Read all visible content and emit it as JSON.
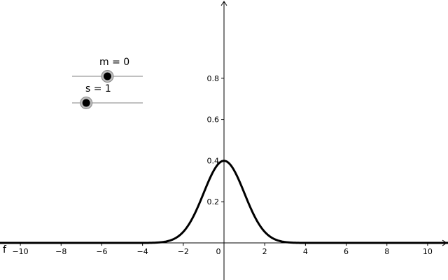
{
  "function_label": "f",
  "curve_color": "#000000",
  "sliders": [
    {
      "name": "m",
      "value": 0,
      "min": -5,
      "max": 5,
      "label": "m = 0"
    },
    {
      "name": "s",
      "value": 1,
      "min": 0,
      "max": 5,
      "label": "s = 1"
    }
  ],
  "chart_data": {
    "type": "line",
    "function": "normal probability density with mean m and standard deviation s",
    "xlim": [
      -11,
      11
    ],
    "ylim": [
      -0.18,
      1.18
    ],
    "x_ticks": [
      -10,
      -8,
      -6,
      -4,
      -2,
      0,
      2,
      4,
      6,
      8,
      10
    ],
    "x_tick_labels": [
      "−10",
      "−8",
      "−6",
      "−4",
      "−2",
      "0",
      "2",
      "4",
      "6",
      "8",
      "10"
    ],
    "y_ticks": [
      0.2,
      0.4,
      0.6,
      0.8
    ],
    "y_tick_labels": [
      "0.2",
      "0.4",
      "0.6",
      "0.8"
    ],
    "grid": false,
    "series": [
      {
        "name": "f",
        "mean": 0,
        "sd": 1,
        "peak": 0.4
      }
    ]
  }
}
